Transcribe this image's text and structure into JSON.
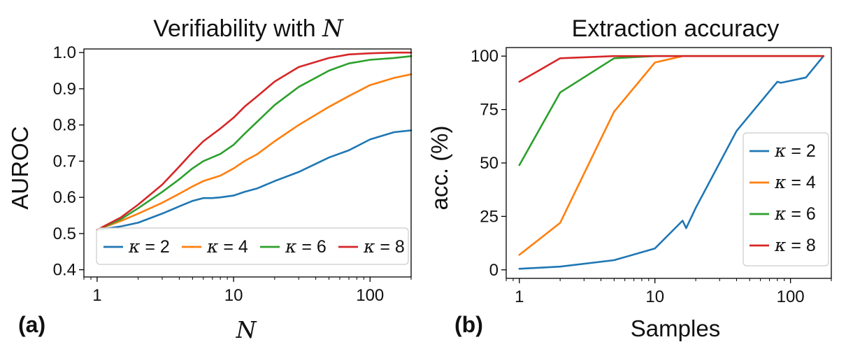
{
  "chart_data": [
    {
      "type": "line",
      "panel_label": "(a)",
      "title": "Verifiability with",
      "title_math": "N",
      "xlabel": "N",
      "ylabel": "AUROC",
      "xscale": "log",
      "xlim": [
        0.8,
        200
      ],
      "ylim": [
        0.38,
        1.01
      ],
      "xticks": [
        1,
        10,
        100
      ],
      "xtick_labels": [
        "1",
        "10",
        "100"
      ],
      "yticks": [
        0.4,
        0.5,
        0.6,
        0.7,
        0.8,
        0.9,
        1.0
      ],
      "ytick_labels": [
        "0.4",
        "0.5",
        "0.6",
        "0.7",
        "0.8",
        "0.9",
        "1.0"
      ],
      "legend_position": "lower-center horizontal",
      "series": [
        {
          "name": "κ = 2",
          "sym": "κ",
          "val": "2",
          "color": "#1f77b4",
          "x": [
            1,
            1.5,
            2,
            3,
            4,
            5,
            6,
            7,
            8,
            10,
            12,
            15,
            20,
            30,
            50,
            70,
            100,
            150,
            200
          ],
          "y": [
            0.51,
            0.52,
            0.53,
            0.555,
            0.575,
            0.59,
            0.598,
            0.598,
            0.6,
            0.605,
            0.615,
            0.625,
            0.645,
            0.67,
            0.71,
            0.73,
            0.76,
            0.78,
            0.785
          ]
        },
        {
          "name": "κ = 4",
          "sym": "κ",
          "val": "4",
          "color": "#ff7f0e",
          "x": [
            1,
            1.5,
            2,
            3,
            4,
            5,
            6,
            8,
            10,
            12,
            15,
            20,
            30,
            50,
            70,
            100,
            150,
            200
          ],
          "y": [
            0.51,
            0.535,
            0.555,
            0.585,
            0.61,
            0.63,
            0.645,
            0.66,
            0.68,
            0.7,
            0.72,
            0.755,
            0.8,
            0.85,
            0.88,
            0.91,
            0.93,
            0.94
          ]
        },
        {
          "name": "κ = 6",
          "sym": "κ",
          "val": "6",
          "color": "#2ca02c",
          "x": [
            1,
            1.5,
            2,
            3,
            4,
            5,
            6,
            8,
            10,
            12,
            15,
            20,
            30,
            50,
            70,
            100,
            150,
            200
          ],
          "y": [
            0.51,
            0.54,
            0.57,
            0.615,
            0.65,
            0.68,
            0.7,
            0.72,
            0.745,
            0.775,
            0.81,
            0.855,
            0.905,
            0.95,
            0.97,
            0.98,
            0.985,
            0.99
          ]
        },
        {
          "name": "κ = 8",
          "sym": "κ",
          "val": "8",
          "color": "#d62728",
          "x": [
            1,
            1.5,
            2,
            3,
            4,
            5,
            6,
            8,
            10,
            12,
            15,
            20,
            30,
            50,
            70,
            100,
            150,
            200
          ],
          "y": [
            0.51,
            0.545,
            0.58,
            0.635,
            0.685,
            0.725,
            0.755,
            0.79,
            0.82,
            0.85,
            0.88,
            0.92,
            0.96,
            0.985,
            0.995,
            0.998,
            1.0,
            1.0
          ]
        }
      ]
    },
    {
      "type": "line",
      "panel_label": "(b)",
      "title": "Extraction accuracy",
      "xlabel": "Samples",
      "ylabel": "acc.  (%)",
      "xscale": "log",
      "xlim": [
        0.8,
        200
      ],
      "ylim": [
        -4,
        104
      ],
      "xticks": [
        1,
        10,
        100
      ],
      "xtick_labels": [
        "1",
        "10",
        "100"
      ],
      "yticks": [
        0,
        25,
        50,
        75,
        100
      ],
      "ytick_labels": [
        "0",
        "25",
        "50",
        "75",
        "100"
      ],
      "legend_position": "center-right",
      "series": [
        {
          "name": "κ = 2",
          "sym": "κ",
          "val": "2",
          "color": "#1f77b4",
          "x": [
            1,
            2,
            5,
            10,
            16,
            17,
            20,
            40,
            80,
            85,
            130,
            175
          ],
          "y": [
            0.5,
            1.5,
            4.5,
            10,
            23,
            19.5,
            29,
            65,
            88,
            87.5,
            90,
            100
          ]
        },
        {
          "name": "κ = 4",
          "sym": "κ",
          "val": "4",
          "color": "#ff7f0e",
          "x": [
            1,
            2,
            5,
            10,
            16,
            175
          ],
          "y": [
            7,
            22,
            74,
            97,
            100,
            100
          ]
        },
        {
          "name": "κ = 6",
          "sym": "κ",
          "val": "6",
          "color": "#2ca02c",
          "x": [
            1,
            2,
            5,
            10,
            175
          ],
          "y": [
            49,
            83,
            99,
            100,
            100
          ]
        },
        {
          "name": "κ = 8",
          "sym": "κ",
          "val": "8",
          "color": "#d62728",
          "x": [
            1,
            2,
            5,
            175
          ],
          "y": [
            88,
            99,
            100,
            100
          ]
        }
      ]
    }
  ]
}
